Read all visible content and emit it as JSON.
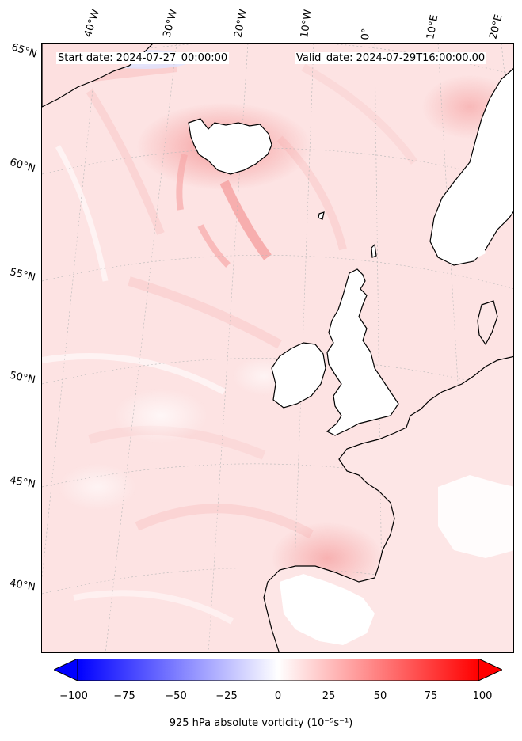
{
  "header": {
    "start_date": "Start date: 2024-07-27_00:00:00",
    "valid_date": "Valid_date: 2024-07-29T16:00:00.00"
  },
  "longitude_labels": [
    "40°W",
    "30°W",
    "20°W",
    "10°W",
    "0°",
    "10°E",
    "20°E"
  ],
  "latitude_labels": [
    "65°N",
    "60°N",
    "55°N",
    "50°N",
    "45°N",
    "40°N"
  ],
  "colorbar": {
    "title": "925 hPa absolute vorticity (10⁻⁵s⁻¹)",
    "ticks": [
      "−100",
      "−75",
      "−50",
      "−25",
      "0",
      "25",
      "50",
      "75",
      "100"
    ],
    "min": -100,
    "max": 100,
    "low_color": "#0000ff",
    "mid_color": "#ffffff",
    "high_color": "#ff0000"
  },
  "map": {
    "background_color": "#fde9e9",
    "coastline_color": "#000000",
    "field_high_color": "#f7a3a3",
    "field_low_color": "#ffffff",
    "gridline_color": "#b8b8b8"
  }
}
